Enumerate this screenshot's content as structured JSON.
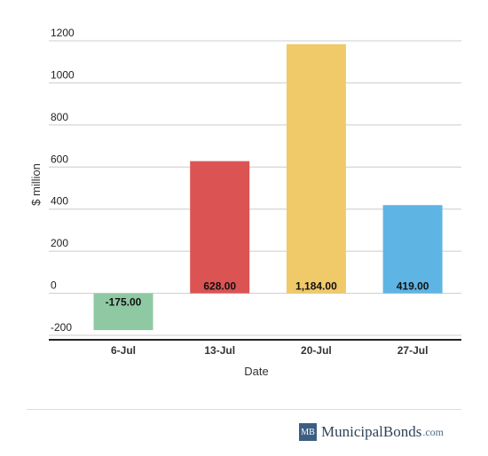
{
  "chart_data": {
    "type": "bar",
    "categories": [
      "6-Jul",
      "13-Jul",
      "20-Jul",
      "27-Jul"
    ],
    "values": [
      -175.0,
      628.0,
      1184.0,
      419.0
    ],
    "data_labels": [
      "-175.00",
      "628.00",
      "1,184.00",
      "419.00"
    ],
    "colors": [
      "#8fc9a4",
      "#dc5354",
      "#f0ca69",
      "#5eb5e4"
    ],
    "xlabel": "Date",
    "ylabel": "$ million",
    "ylim": [
      -200,
      1200
    ],
    "yticks": [
      1200,
      1000,
      800,
      600,
      400,
      200,
      0,
      -200
    ],
    "grid": true,
    "legend": false
  },
  "branding": {
    "logo_mark": "MB",
    "logo_name": "MunicipalBonds",
    "logo_tld": ".com"
  }
}
